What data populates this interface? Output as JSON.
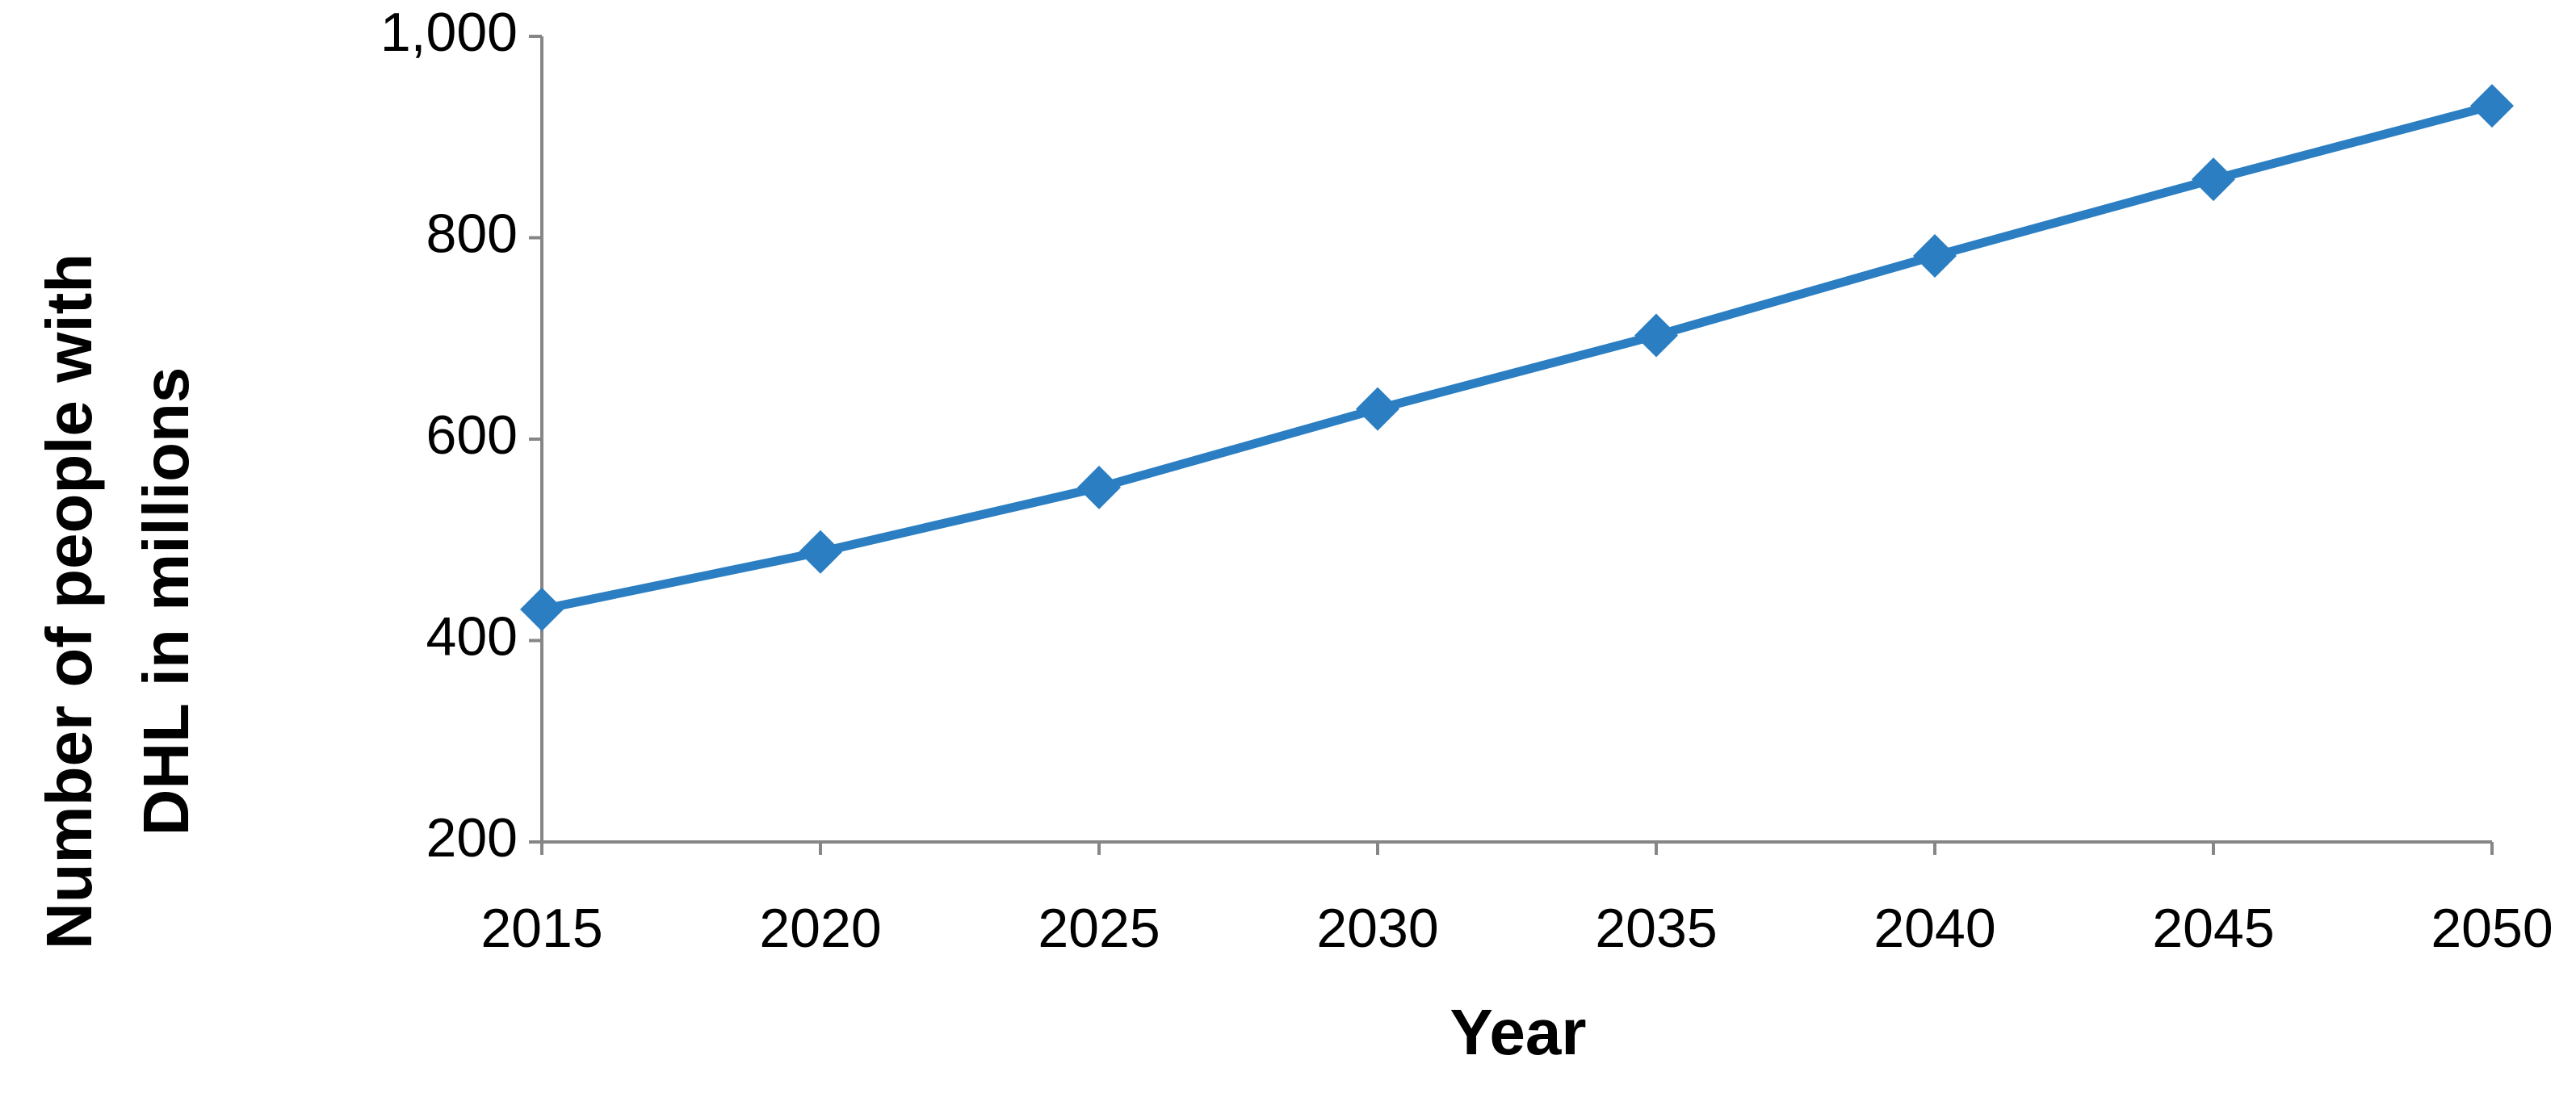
{
  "chart_data": {
    "type": "line",
    "x": [
      2015,
      2020,
      2025,
      2030,
      2035,
      2040,
      2045,
      2050
    ],
    "series": [
      {
        "name": "Number of people with DHL in millions",
        "color": "#2b7ec1",
        "values": [
          431,
          488,
          552,
          630,
          703,
          782,
          858,
          931
        ]
      }
    ],
    "xlabel": "Year",
    "ylabel": [
      "Number of people with",
      "DHL in millions"
    ],
    "xlim": [
      2015,
      2050
    ],
    "xticks": [
      2015,
      2020,
      2025,
      2030,
      2035,
      2040,
      2045,
      2050
    ],
    "ylim": [
      200,
      1000
    ],
    "yticks": [
      200,
      400,
      600,
      800,
      {
        "value": 1000,
        "label": "1,000"
      }
    ],
    "grid": false,
    "marker": "diamond"
  }
}
